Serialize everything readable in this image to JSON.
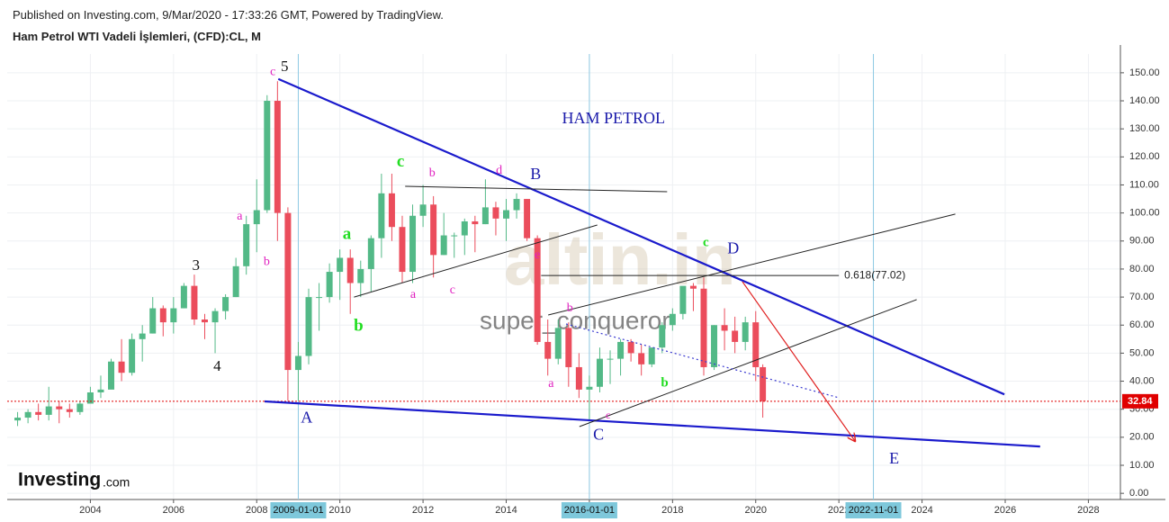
{
  "chart_data": {
    "type": "candlestick",
    "published": "Published on Investing.com, 9/Mar/2020 - 17:33:26 GMT, Powered by TradingView.",
    "title": "Ham Petrol WTI Vadeli İşlemleri, (CFD):CL, M",
    "logo": "Investing",
    "logo_suffix": ".com",
    "watermark": "altin.in",
    "author": "super_conqueror",
    "x": [
      2002.25,
      2002.5,
      2002.75,
      2003.0,
      2003.25,
      2003.5,
      2003.75,
      2004.0,
      2004.25,
      2004.5,
      2004.75,
      2005.0,
      2005.25,
      2005.5,
      2005.75,
      2006.0,
      2006.25,
      2006.5,
      2006.75,
      2007.0,
      2007.25,
      2007.5,
      2007.75,
      2008.0,
      2008.25,
      2008.5,
      2008.75,
      2009.0,
      2009.25,
      2009.5,
      2009.75,
      2010.0,
      2010.25,
      2010.5,
      2010.75,
      2011.0,
      2011.25,
      2011.5,
      2011.75,
      2012.0,
      2012.25,
      2012.5,
      2012.75,
      2013.0,
      2013.25,
      2013.5,
      2013.75,
      2014.0,
      2014.25,
      2014.5,
      2014.75,
      2015.0,
      2015.25,
      2015.5,
      2015.75,
      2016.0,
      2016.25,
      2016.5,
      2016.75,
      2017.0,
      2017.25,
      2017.5,
      2017.75,
      2018.0,
      2018.25,
      2018.5,
      2018.75,
      2019.0,
      2019.25,
      2019.5,
      2019.75,
      2020.0,
      2020.17
    ],
    "open": [
      26,
      27,
      29,
      28,
      31,
      30,
      29,
      32,
      36,
      37,
      47,
      43,
      55,
      57,
      66,
      61,
      66,
      74,
      62,
      61,
      65,
      70,
      81,
      96,
      101,
      140,
      100,
      44,
      49,
      70,
      70,
      79,
      84,
      75,
      80,
      91,
      107,
      95,
      79,
      99,
      103,
      85,
      92,
      92,
      97,
      96,
      102,
      98,
      101,
      105,
      91,
      54,
      48,
      59,
      45,
      37,
      38,
      48,
      48,
      54,
      50,
      46,
      52,
      60,
      64,
      74,
      73,
      45,
      60,
      58,
      54,
      61,
      45
    ],
    "high": [
      29,
      30,
      32,
      38,
      33,
      32,
      33,
      38,
      42,
      48,
      55,
      57,
      60,
      70,
      67,
      70,
      75,
      78,
      64,
      66,
      71,
      84,
      99,
      112,
      142,
      147,
      102,
      54,
      73,
      75,
      82,
      87,
      87,
      83,
      92,
      114,
      114,
      99,
      103,
      110,
      106,
      100,
      93,
      98,
      99,
      112,
      104,
      105,
      107,
      105,
      92,
      62,
      62,
      61,
      50,
      42,
      52,
      51,
      55,
      55,
      53,
      52,
      61,
      66,
      73,
      75,
      77,
      60,
      66,
      63,
      63,
      65,
      46
    ],
    "low": [
      24,
      25,
      26,
      26,
      25,
      27,
      28,
      32,
      34,
      38,
      40,
      42,
      47,
      57,
      56,
      57,
      66,
      60,
      55,
      50,
      62,
      70,
      78,
      86,
      100,
      90,
      33,
      33,
      46,
      58,
      68,
      69,
      64,
      70,
      72,
      84,
      90,
      75,
      75,
      95,
      77,
      85,
      84,
      85,
      86,
      96,
      92,
      90,
      98,
      90,
      53,
      42,
      46,
      38,
      34,
      26,
      36,
      39,
      42,
      47,
      42,
      45,
      50,
      58,
      62,
      65,
      42,
      44,
      51,
      50,
      51,
      40,
      27
    ],
    "close": [
      27,
      29,
      28,
      31,
      30,
      29,
      32,
      36,
      37,
      47,
      43,
      55,
      57,
      66,
      61,
      66,
      74,
      62,
      61,
      65,
      70,
      81,
      96,
      101,
      140,
      100,
      44,
      49,
      70,
      70,
      79,
      84,
      75,
      80,
      91,
      107,
      95,
      79,
      99,
      103,
      85,
      92,
      92,
      97,
      96,
      102,
      98,
      101,
      105,
      91,
      54,
      48,
      59,
      45,
      37,
      38,
      48,
      48,
      54,
      50,
      46,
      52,
      60,
      64,
      74,
      73,
      45,
      60,
      58,
      54,
      61,
      45,
      32.84
    ],
    "up_color": "#53b987",
    "down_color": "#eb4d5c",
    "xlim": [
      2002,
      2028.77
    ],
    "ylim": [
      -2.2,
      156.7
    ],
    "xticks": [
      2004,
      2006,
      2008,
      2010,
      2012,
      2014,
      2016,
      2018,
      2020,
      2022,
      2024,
      2026,
      2028
    ],
    "yticks": [
      {
        "value": 0,
        "label": "0.00"
      },
      {
        "value": 10,
        "label": "10.00"
      },
      {
        "value": 20,
        "label": "20.00"
      },
      {
        "value": 30,
        "label": "30.00"
      },
      {
        "value": 40,
        "label": "40.00"
      },
      {
        "value": 50,
        "label": "50.00"
      },
      {
        "value": 60,
        "label": "60.00"
      },
      {
        "value": 70,
        "label": "70.00"
      },
      {
        "value": 80,
        "label": "80.00"
      },
      {
        "value": 90,
        "label": "90.00"
      },
      {
        "value": 100,
        "label": "100.00"
      },
      {
        "value": 110,
        "label": "110.00"
      },
      {
        "value": 120,
        "label": "120.00"
      },
      {
        "value": 130,
        "label": "130.00"
      },
      {
        "value": 140,
        "label": "140.00"
      },
      {
        "value": 150,
        "label": "150.00"
      }
    ],
    "grid": true,
    "date_markers": [
      {
        "value": 2009.0,
        "label": "2009-01-01"
      },
      {
        "value": 2016.0,
        "label": "2016-01-01"
      },
      {
        "value": 2022.83,
        "label": "2022-11-01"
      }
    ],
    "last_price": {
      "value": 32.84,
      "label": "32.84"
    },
    "last_price_color": "#e00000",
    "drawings": [
      {
        "color": "#1a1acc",
        "width": 2.2,
        "dash": "",
        "points": [
          [
            2008.52,
            147.8
          ],
          [
            2025.98,
            35.3
          ]
        ]
      },
      {
        "color": "#1a1acc",
        "width": 2.2,
        "dash": "",
        "points": [
          [
            2008.19,
            32.8
          ],
          [
            2026.84,
            16.7
          ]
        ]
      },
      {
        "color": "#222",
        "width": 1,
        "dash": "",
        "points": [
          [
            2011.57,
            109.5
          ],
          [
            2017.87,
            107.6
          ]
        ]
      },
      {
        "color": "#222",
        "width": 1,
        "dash": "",
        "points": [
          [
            2010.34,
            70.0
          ],
          [
            2016.19,
            95.7
          ]
        ]
      },
      {
        "color": "#222",
        "width": 1,
        "dash": "",
        "points": [
          [
            2014.84,
            77.7
          ],
          [
            2022.0,
            77.7
          ]
        ]
      },
      {
        "color": "#222",
        "width": 1,
        "dash": "",
        "points": [
          [
            2015.01,
            63.6
          ],
          [
            2024.8,
            99.6
          ]
        ]
      },
      {
        "color": "#222",
        "width": 1,
        "dash": "",
        "points": [
          [
            2015.76,
            23.8
          ],
          [
            2023.87,
            69.1
          ]
        ]
      },
      {
        "color": "#3a3ad0",
        "width": 1.2,
        "dash": "2 3",
        "points": [
          [
            2015.44,
            60.4
          ],
          [
            2022.0,
            34.1
          ]
        ]
      },
      {
        "color": "#e02020",
        "width": 1.2,
        "dash": "",
        "points": [
          [
            2019.68,
            75.5
          ],
          [
            2022.39,
            18.6
          ]
        ]
      }
    ],
    "annotations": [
      {
        "text": "c",
        "x": 2008.39,
        "y": 150.2,
        "color": "#e020c0",
        "size": 14
      },
      {
        "text": "5",
        "x": 2008.67,
        "y": 151.9,
        "color": "#111",
        "size": 17
      },
      {
        "text": "3",
        "x": 2006.54,
        "y": 80.9,
        "color": "#111",
        "size": 17
      },
      {
        "text": "4",
        "x": 2007.05,
        "y": 44.9,
        "color": "#111",
        "size": 17
      },
      {
        "text": "a",
        "x": 2007.59,
        "y": 98.6,
        "color": "#e020c0",
        "size": 14
      },
      {
        "text": "b",
        "x": 2008.24,
        "y": 82.5,
        "color": "#e020c0",
        "size": 14
      },
      {
        "text": "A",
        "x": 2009.2,
        "y": 26.6,
        "color": "#1a1aaa",
        "size": 18
      },
      {
        "text": "c",
        "x": 2011.46,
        "y": 117.9,
        "color": "#22dd22",
        "size": 19
      },
      {
        "text": "a",
        "x": 2010.17,
        "y": 92.2,
        "color": "#22dd22",
        "size": 19
      },
      {
        "text": "b",
        "x": 2010.45,
        "y": 59.4,
        "color": "#22dd22",
        "size": 19
      },
      {
        "text": "b",
        "x": 2012.22,
        "y": 114.0,
        "color": "#e020c0",
        "size": 14
      },
      {
        "text": "a",
        "x": 2011.76,
        "y": 70.7,
        "color": "#e020c0",
        "size": 14
      },
      {
        "text": "c",
        "x": 2012.71,
        "y": 72.3,
        "color": "#e020c0",
        "size": 14
      },
      {
        "text": "d",
        "x": 2013.83,
        "y": 115.0,
        "color": "#e020c0",
        "size": 14
      },
      {
        "text": "B",
        "x": 2014.71,
        "y": 113.4,
        "color": "#1a1aaa",
        "size": 18
      },
      {
        "text": "e",
        "x": 2014.75,
        "y": 84.8,
        "color": "#e020c0",
        "size": 14
      },
      {
        "text": "b",
        "x": 2015.53,
        "y": 65.9,
        "color": "#e020c0",
        "size": 14
      },
      {
        "text": "a",
        "x": 2015.08,
        "y": 38.9,
        "color": "#e020c0",
        "size": 14
      },
      {
        "text": "c",
        "x": 2016.45,
        "y": 27.6,
        "color": "#e020c0",
        "size": 12
      },
      {
        "text": "C",
        "x": 2016.22,
        "y": 20.5,
        "color": "#1a1aaa",
        "size": 18
      },
      {
        "text": "b",
        "x": 2017.81,
        "y": 39.2,
        "color": "#22dd22",
        "size": 15
      },
      {
        "text": "c",
        "x": 2018.8,
        "y": 89.3,
        "color": "#22dd22",
        "size": 15
      },
      {
        "text": "D",
        "x": 2019.46,
        "y": 87.0,
        "color": "#1a1aaa",
        "size": 18
      },
      {
        "text": "E",
        "x": 2023.33,
        "y": 11.9,
        "color": "#1a1aaa",
        "size": 18
      },
      {
        "text": "HAM PETROL",
        "x": 2016.58,
        "y": 133.3,
        "color": "#1a1aaa",
        "size": 18
      },
      {
        "text": "0.618(77.02)",
        "x": 2022.13,
        "y": 77.7,
        "color": "#222",
        "size": 12,
        "sans": true
      }
    ]
  }
}
